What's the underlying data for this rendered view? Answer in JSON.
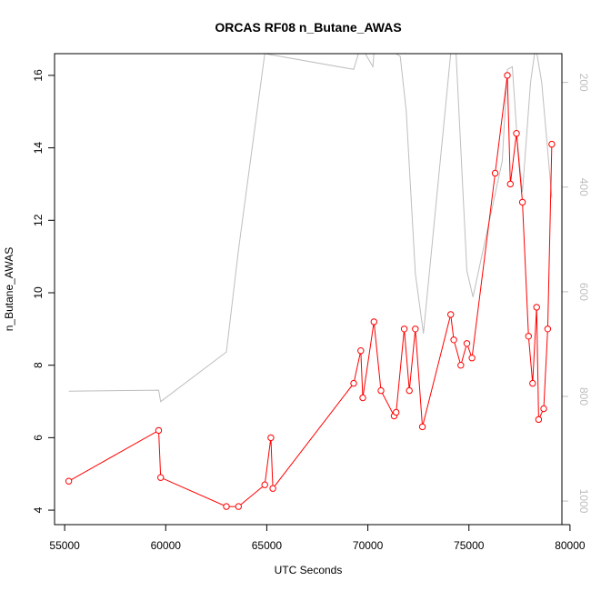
{
  "chart_data": {
    "type": "line",
    "title": "ORCAS RF08 n_Butane_AWAS",
    "xlabel": "UTC Seconds",
    "ylabel": "n_Butane_AWAS",
    "xlim": [
      54500,
      79600
    ],
    "ylim": [
      3.6,
      16.6
    ],
    "x_ticks": [
      55000,
      60000,
      65000,
      70000,
      75000,
      80000
    ],
    "y_ticks": [
      4,
      6,
      8,
      10,
      12,
      14,
      16
    ],
    "right_axis": {
      "reversed": true,
      "lim": [
        1045,
        145
      ],
      "ticks": [
        200,
        400,
        600,
        800,
        1000
      ],
      "color": "#bebebe"
    },
    "series": [
      {
        "color": "#ff0000",
        "marker": "open-circle",
        "x": [
          55200,
          59650,
          59750,
          63000,
          63600,
          64900,
          65200,
          65300,
          69300,
          69650,
          69750,
          70300,
          70650,
          71300,
          71400,
          71800,
          72050,
          72350,
          72700,
          74100,
          74250,
          74600,
          74900,
          75150,
          76300,
          76900,
          77050,
          77350,
          77650,
          77950,
          78150,
          78350,
          78450,
          78700,
          78900,
          79100
        ],
        "y": [
          4.8,
          6.2,
          4.9,
          4.1,
          4.1,
          4.7,
          6.0,
          4.6,
          7.5,
          8.4,
          7.1,
          9.2,
          7.3,
          6.6,
          6.7,
          9.0,
          7.3,
          9.0,
          6.3,
          9.4,
          8.7,
          8.0,
          8.6,
          8.2,
          13.3,
          16.0,
          13.0,
          14.4,
          12.5,
          8.8,
          7.5,
          9.6,
          6.5,
          6.8,
          9.0,
          14.1
        ]
      },
      {
        "color": "#bebebe",
        "marker": "none",
        "x": [
          55200,
          59650,
          59750,
          63000,
          63600,
          64900,
          69300,
          69650,
          70250,
          70350,
          71600,
          71900,
          72350,
          72750,
          74100,
          74350,
          74900,
          75200,
          76650,
          76900,
          77150,
          77400,
          77650,
          78050,
          78300,
          78600,
          79100
        ],
        "y": [
          790,
          788,
          810,
          715,
          520,
          145,
          175,
          130,
          170,
          120,
          150,
          255,
          565,
          680,
          145,
          135,
          560,
          610,
          350,
          175,
          170,
          315,
          410,
          200,
          130,
          200,
          420
        ]
      }
    ]
  }
}
